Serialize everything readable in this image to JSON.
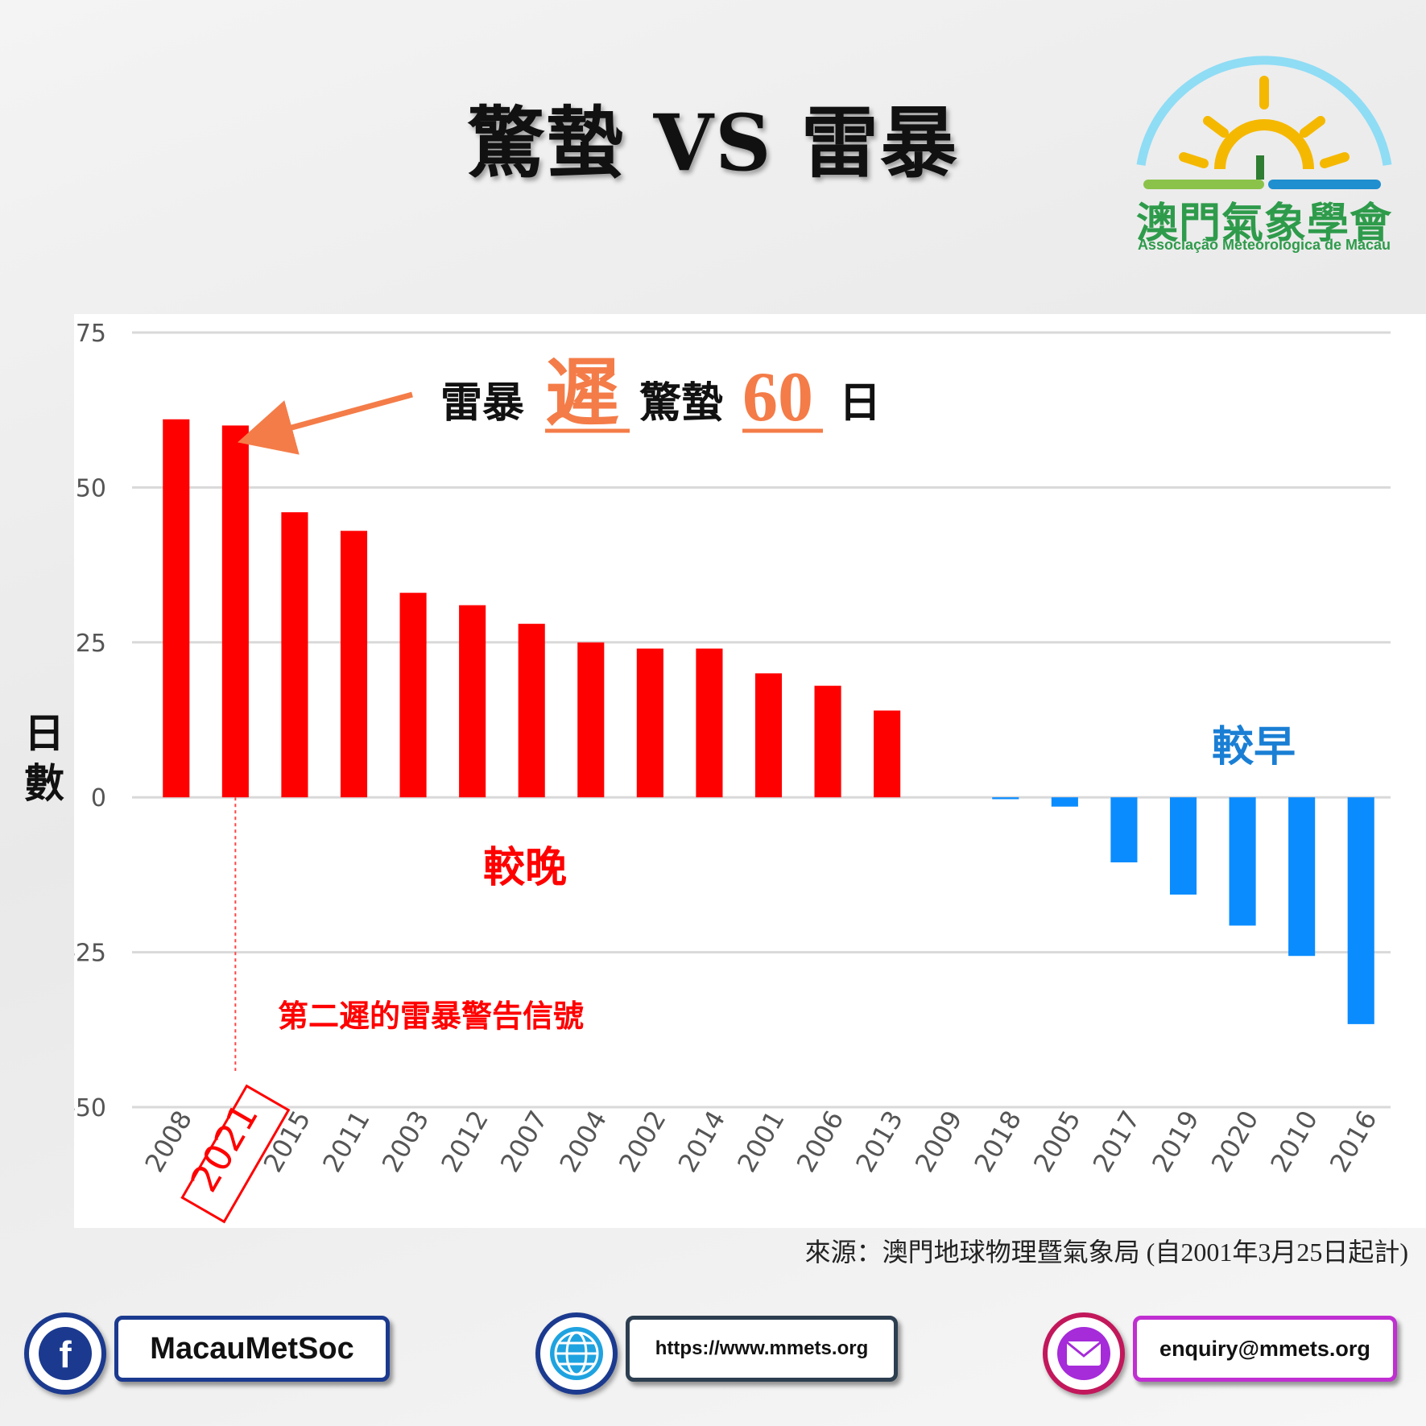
{
  "header": {
    "title": "驚蟄 VS 雷暴"
  },
  "logo": {
    "name_cn": "澳門氣象學會",
    "name_pt": "Associação Meteorológica de Macau"
  },
  "annotation": {
    "part1": "雷暴",
    "emph": "遲",
    "part2": "驚蟄",
    "number": "60",
    "unit": "日",
    "later_label": "較晚",
    "earlier_label": "較早",
    "note": "第二遲的雷暴警告信號"
  },
  "source": "來源：澳門地球物理暨氣象局 (自2001年3月25日起計)",
  "footer": {
    "facebook": "MacauMetSoc",
    "website": "https://www.mmets.org",
    "email": "enquiry@mmets.org"
  },
  "colors": {
    "positive": "#ff0000",
    "negative": "#0a8cff",
    "accent": "#f47c48"
  },
  "chart_data": {
    "type": "bar",
    "ylabel": "日數",
    "ylim": [
      -50,
      75
    ],
    "yticks": [
      75,
      50,
      25,
      0,
      -25,
      -50
    ],
    "grid": true,
    "highlight": "2021",
    "categories": [
      "2008",
      "2021",
      "2015",
      "2011",
      "2003",
      "2012",
      "2007",
      "2004",
      "2002",
      "2014",
      "2001",
      "2006",
      "2013",
      "2009",
      "2018",
      "2005",
      "2017",
      "2019",
      "2020",
      "2010",
      "2016"
    ],
    "values": [
      61,
      60,
      46,
      43,
      33,
      31,
      28,
      25,
      24,
      24,
      20,
      18,
      14,
      0,
      -0.3,
      -1.5,
      -10.5,
      -15.7,
      -20.7,
      -25.6,
      -36.6
    ]
  }
}
